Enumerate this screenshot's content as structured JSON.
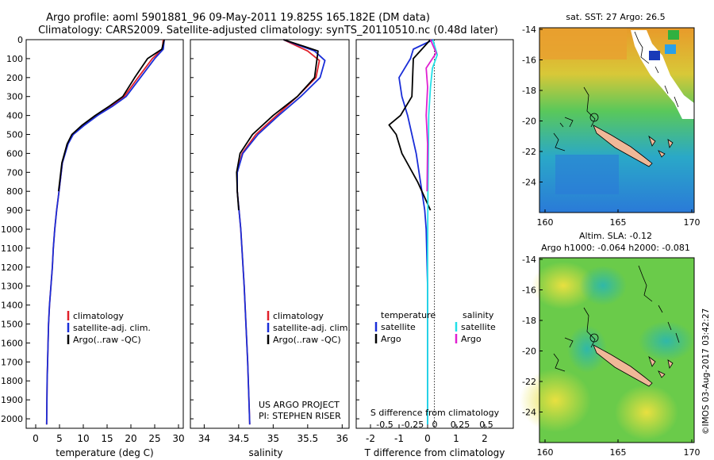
{
  "header": {
    "line1": "Argo profile: aoml 5901881_96 09-May-2011 19.825S 165.182E (DM data)",
    "line2": "Climatology: CARS2009. Satellite-adjusted climatology: synTS_20110510.nc (0.48d later)"
  },
  "colors": {
    "climatology": "#e0202a",
    "satellite": "#1a2ed8",
    "argo": "#000000",
    "satellite_salinity": "#22e0e8",
    "argo_salinity": "#e020d0"
  },
  "depth_ticks": [
    "0",
    "100",
    "200",
    "300",
    "400",
    "500",
    "600",
    "700",
    "800",
    "900",
    "1000",
    "1100",
    "1200",
    "1300",
    "1400",
    "1500",
    "1600",
    "1700",
    "1800",
    "1900",
    "2000"
  ],
  "panels": {
    "temperature": {
      "xlabel": "temperature (deg C)",
      "xticks": [
        "0",
        "5",
        "10",
        "15",
        "20",
        "25",
        "30"
      ],
      "legend": [
        "climatology",
        "satellite-adj. clim.",
        "Argo(..raw -QC)"
      ]
    },
    "salinity": {
      "xlabel": "salinity",
      "xticks": [
        "34",
        "34.5",
        "35",
        "35.5",
        "36"
      ],
      "legend": [
        "climatology",
        "satellite-adj. clim.",
        "Argo(..raw -QC)"
      ],
      "credit1": "US ARGO PROJECT",
      "credit2": "PI: STEPHEN RISER"
    },
    "difference": {
      "xlabel": "T difference from climatology",
      "xticks": [
        "-2",
        "-1",
        "0",
        "1",
        "2"
      ],
      "s_label": "S difference from climatology",
      "s_ticks": [
        "-0.5",
        "-0.25",
        "0",
        "0.25",
        "0.5"
      ],
      "legend_temp_title": "temperature",
      "legend_sal_title": "salinity",
      "legend_temp": [
        "satellite",
        "Argo"
      ],
      "legend_sal": [
        "satellite",
        "Argo"
      ]
    }
  },
  "maps": {
    "top_title": "sat. SST: 27 Argo: 26.5",
    "bottom_title1": "Altim. SLA: -0.12",
    "bottom_title2": "Argo h1000: -0.064 h2000: -0.081",
    "yticks": [
      "-14",
      "-16",
      "-18",
      "-20",
      "-22",
      "-24"
    ],
    "xticks": [
      "160",
      "165",
      "170"
    ]
  },
  "footer": {
    "stamp": "©IMOS 03-Aug-2017 03:42:27"
  },
  "chart_data": [
    {
      "type": "line",
      "title": "",
      "xlabel": "temperature (deg C)",
      "ylabel": "",
      "xlim": [
        -2,
        31
      ],
      "ylim": [
        2050,
        0
      ],
      "series": [
        {
          "name": "climatology",
          "x": [
            26.8,
            26.6,
            24.5,
            21.5,
            18.6,
            15.9,
            12.9,
            10.2,
            7.8,
            6.7,
            5.6,
            4.9,
            4.4,
            4.0,
            3.7,
            3.5,
            3.2,
            2.9,
            2.7,
            2.6,
            2.5,
            2.4,
            2.3
          ],
          "y": [
            0,
            50,
            100,
            200,
            300,
            350,
            400,
            450,
            500,
            550,
            650,
            800,
            900,
            1000,
            1100,
            1200,
            1300,
            1400,
            1500,
            1600,
            1700,
            1800,
            2030
          ]
        },
        {
          "name": "satellite-adj. clim.",
          "x": [
            27.0,
            26.8,
            25.0,
            22.0,
            19.0,
            16.2,
            13.0,
            10.3,
            7.9,
            6.8,
            5.6,
            4.9,
            4.4,
            4.0,
            3.7,
            3.5,
            3.2,
            2.9,
            2.7,
            2.6,
            2.5,
            2.4,
            2.3
          ],
          "y": [
            0,
            50,
            100,
            200,
            300,
            350,
            400,
            450,
            500,
            550,
            650,
            800,
            900,
            1000,
            1100,
            1200,
            1300,
            1400,
            1500,
            1600,
            1700,
            1800,
            2030
          ]
        },
        {
          "name": "Argo(..raw -QC)",
          "x": [
            27.0,
            26.5,
            23.5,
            20.8,
            18.3,
            15.5,
            12.5,
            9.8,
            7.6,
            6.6,
            5.5,
            4.8
          ],
          "y": [
            0,
            50,
            100,
            200,
            300,
            350,
            400,
            450,
            500,
            550,
            650,
            800
          ]
        }
      ]
    },
    {
      "type": "line",
      "title": "",
      "xlabel": "salinity",
      "ylabel": "",
      "xlim": [
        33.8,
        36.1
      ],
      "ylim": [
        2050,
        0
      ],
      "series": [
        {
          "name": "climatology",
          "x": [
            35.15,
            35.5,
            35.67,
            35.62,
            35.35,
            35.05,
            34.75,
            34.55,
            34.48,
            34.48,
            34.53,
            34.58,
            34.63,
            34.66
          ],
          "y": [
            0,
            60,
            110,
            200,
            300,
            400,
            500,
            600,
            700,
            800,
            1000,
            1300,
            1700,
            2030
          ]
        },
        {
          "name": "satellite-adj. clim.",
          "x": [
            35.15,
            35.6,
            35.75,
            35.68,
            35.4,
            35.08,
            34.78,
            34.56,
            34.48,
            34.48,
            34.53,
            34.58,
            34.63,
            34.66
          ],
          "y": [
            0,
            60,
            110,
            200,
            300,
            400,
            500,
            600,
            700,
            800,
            1000,
            1300,
            1700,
            2030
          ]
        },
        {
          "name": "Argo(..raw -QC)",
          "x": [
            35.15,
            35.65,
            35.6,
            35.35,
            35.0,
            34.7,
            34.52,
            34.47,
            34.48,
            34.5
          ],
          "y": [
            0,
            60,
            200,
            300,
            400,
            500,
            600,
            700,
            800,
            900
          ]
        }
      ]
    },
    {
      "type": "line",
      "title": "",
      "xlabel": "T difference from climatology",
      "ylabel": "",
      "xlim": [
        -2.5,
        3
      ],
      "ylim": [
        2050,
        0
      ],
      "series": [
        {
          "name": "temperature satellite",
          "x": [
            0.2,
            -0.5,
            -0.6,
            -1.0,
            -0.9,
            -0.7,
            -0.55,
            -0.4,
            -0.3,
            -0.2,
            -0.1,
            -0.05,
            0,
            0,
            0
          ],
          "y": [
            0,
            50,
            100,
            200,
            300,
            400,
            500,
            600,
            700,
            800,
            900,
            1000,
            1300,
            1700,
            2030
          ]
        },
        {
          "name": "temperature Argo",
          "x": [
            0.1,
            -0.2,
            -0.5,
            -0.55,
            -0.95,
            -1.35,
            -1.1,
            -0.9,
            -0.35,
            -0.2,
            0.1
          ],
          "y": [
            0,
            50,
            100,
            300,
            400,
            450,
            500,
            600,
            750,
            800,
            900
          ]
        },
        {
          "name": "salinity satellite",
          "x": [
            0.18,
            0.34,
            0.17,
            0.1,
            0.04,
            0.03,
            0.02,
            0.01,
            0,
            0,
            0
          ],
          "y": [
            0,
            80,
            150,
            250,
            400,
            550,
            700,
            800,
            1100,
            1500,
            2030
          ]
        },
        {
          "name": "salinity Argo",
          "x": [
            0.1,
            0.3,
            -0.05,
            0.0,
            -0.05,
            0.0,
            -0.02
          ],
          "y": [
            0,
            70,
            150,
            250,
            400,
            550,
            800
          ]
        }
      ]
    }
  ]
}
